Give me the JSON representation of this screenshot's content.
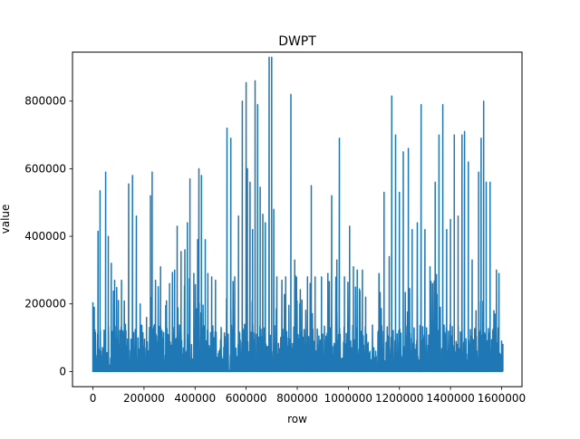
{
  "chart_data": {
    "type": "line",
    "title": "DWPT",
    "xlabel": "row",
    "ylabel": "value",
    "xlim": [
      -80000,
      1680000
    ],
    "ylim": [
      -45000,
      945000
    ],
    "xticks": [
      0,
      200000,
      400000,
      600000,
      800000,
      1000000,
      1200000,
      1400000,
      1600000
    ],
    "xtick_labels": [
      "0",
      "200000",
      "400000",
      "600000",
      "800000",
      "1000000",
      "1200000",
      "1400000",
      "1600000"
    ],
    "yticks": [
      0,
      200000,
      400000,
      600000,
      800000
    ],
    "ytick_labels": [
      "0",
      "200000",
      "400000",
      "600000",
      "800000"
    ],
    "grid": false,
    "legend": "none",
    "series": [
      {
        "color": "#1f77b4",
        "baseline_max": 140000,
        "peaks": [
          [
            0,
            205000
          ],
          [
            5000,
            190000
          ],
          [
            20000,
            415000
          ],
          [
            28000,
            535000
          ],
          [
            38000,
            60000
          ],
          [
            50000,
            590000
          ],
          [
            60000,
            400000
          ],
          [
            72000,
            320000
          ],
          [
            85000,
            270000
          ],
          [
            100000,
            210000
          ],
          [
            112000,
            270000
          ],
          [
            140000,
            555000
          ],
          [
            155000,
            580000
          ],
          [
            170000,
            460000
          ],
          [
            185000,
            200000
          ],
          [
            210000,
            160000
          ],
          [
            225000,
            520000
          ],
          [
            232000,
            590000
          ],
          [
            245000,
            270000
          ],
          [
            265000,
            310000
          ],
          [
            285000,
            195000
          ],
          [
            300000,
            260000
          ],
          [
            320000,
            300000
          ],
          [
            330000,
            430000
          ],
          [
            345000,
            355000
          ],
          [
            360000,
            360000
          ],
          [
            370000,
            440000
          ],
          [
            380000,
            570000
          ],
          [
            395000,
            290000
          ],
          [
            410000,
            390000
          ],
          [
            415000,
            600000
          ],
          [
            425000,
            580000
          ],
          [
            440000,
            390000
          ],
          [
            450000,
            290000
          ],
          [
            465000,
            280000
          ],
          [
            480000,
            270000
          ],
          [
            525000,
            720000
          ],
          [
            540000,
            690000
          ],
          [
            555000,
            280000
          ],
          [
            570000,
            460000
          ],
          [
            585000,
            800000
          ],
          [
            600000,
            855000
          ],
          [
            605000,
            600000
          ],
          [
            615000,
            560000
          ],
          [
            625000,
            420000
          ],
          [
            635000,
            860000
          ],
          [
            645000,
            790000
          ],
          [
            655000,
            545000
          ],
          [
            665000,
            465000
          ],
          [
            675000,
            440000
          ],
          [
            690000,
            930000
          ],
          [
            700000,
            930000
          ],
          [
            708000,
            480000
          ],
          [
            720000,
            280000
          ],
          [
            740000,
            270000
          ],
          [
            755000,
            280000
          ],
          [
            775000,
            820000
          ],
          [
            790000,
            330000
          ],
          [
            810000,
            200000
          ],
          [
            840000,
            280000
          ],
          [
            855000,
            550000
          ],
          [
            870000,
            280000
          ],
          [
            895000,
            280000
          ],
          [
            920000,
            290000
          ],
          [
            935000,
            520000
          ],
          [
            955000,
            330000
          ],
          [
            965000,
            690000
          ],
          [
            985000,
            280000
          ],
          [
            1005000,
            430000
          ],
          [
            1020000,
            310000
          ],
          [
            1035000,
            300000
          ],
          [
            1055000,
            300000
          ],
          [
            1068000,
            220000
          ],
          [
            1085000,
            60000
          ],
          [
            1100000,
            70000
          ],
          [
            1120000,
            290000
          ],
          [
            1140000,
            530000
          ],
          [
            1160000,
            340000
          ],
          [
            1170000,
            815000
          ],
          [
            1185000,
            700000
          ],
          [
            1200000,
            530000
          ],
          [
            1215000,
            650000
          ],
          [
            1235000,
            660000
          ],
          [
            1250000,
            420000
          ],
          [
            1270000,
            440000
          ],
          [
            1285000,
            790000
          ],
          [
            1300000,
            420000
          ],
          [
            1320000,
            310000
          ],
          [
            1340000,
            560000
          ],
          [
            1355000,
            700000
          ],
          [
            1370000,
            790000
          ],
          [
            1385000,
            420000
          ],
          [
            1400000,
            450000
          ],
          [
            1415000,
            700000
          ],
          [
            1430000,
            460000
          ],
          [
            1445000,
            700000
          ],
          [
            1455000,
            710000
          ],
          [
            1470000,
            620000
          ],
          [
            1485000,
            330000
          ],
          [
            1500000,
            180000
          ],
          [
            1510000,
            590000
          ],
          [
            1520000,
            690000
          ],
          [
            1530000,
            800000
          ],
          [
            1540000,
            560000
          ],
          [
            1555000,
            560000
          ],
          [
            1570000,
            180000
          ],
          [
            1580000,
            300000
          ],
          [
            1590000,
            290000
          ],
          [
            1600000,
            90000
          ],
          [
            1605000,
            80000
          ]
        ]
      }
    ]
  }
}
